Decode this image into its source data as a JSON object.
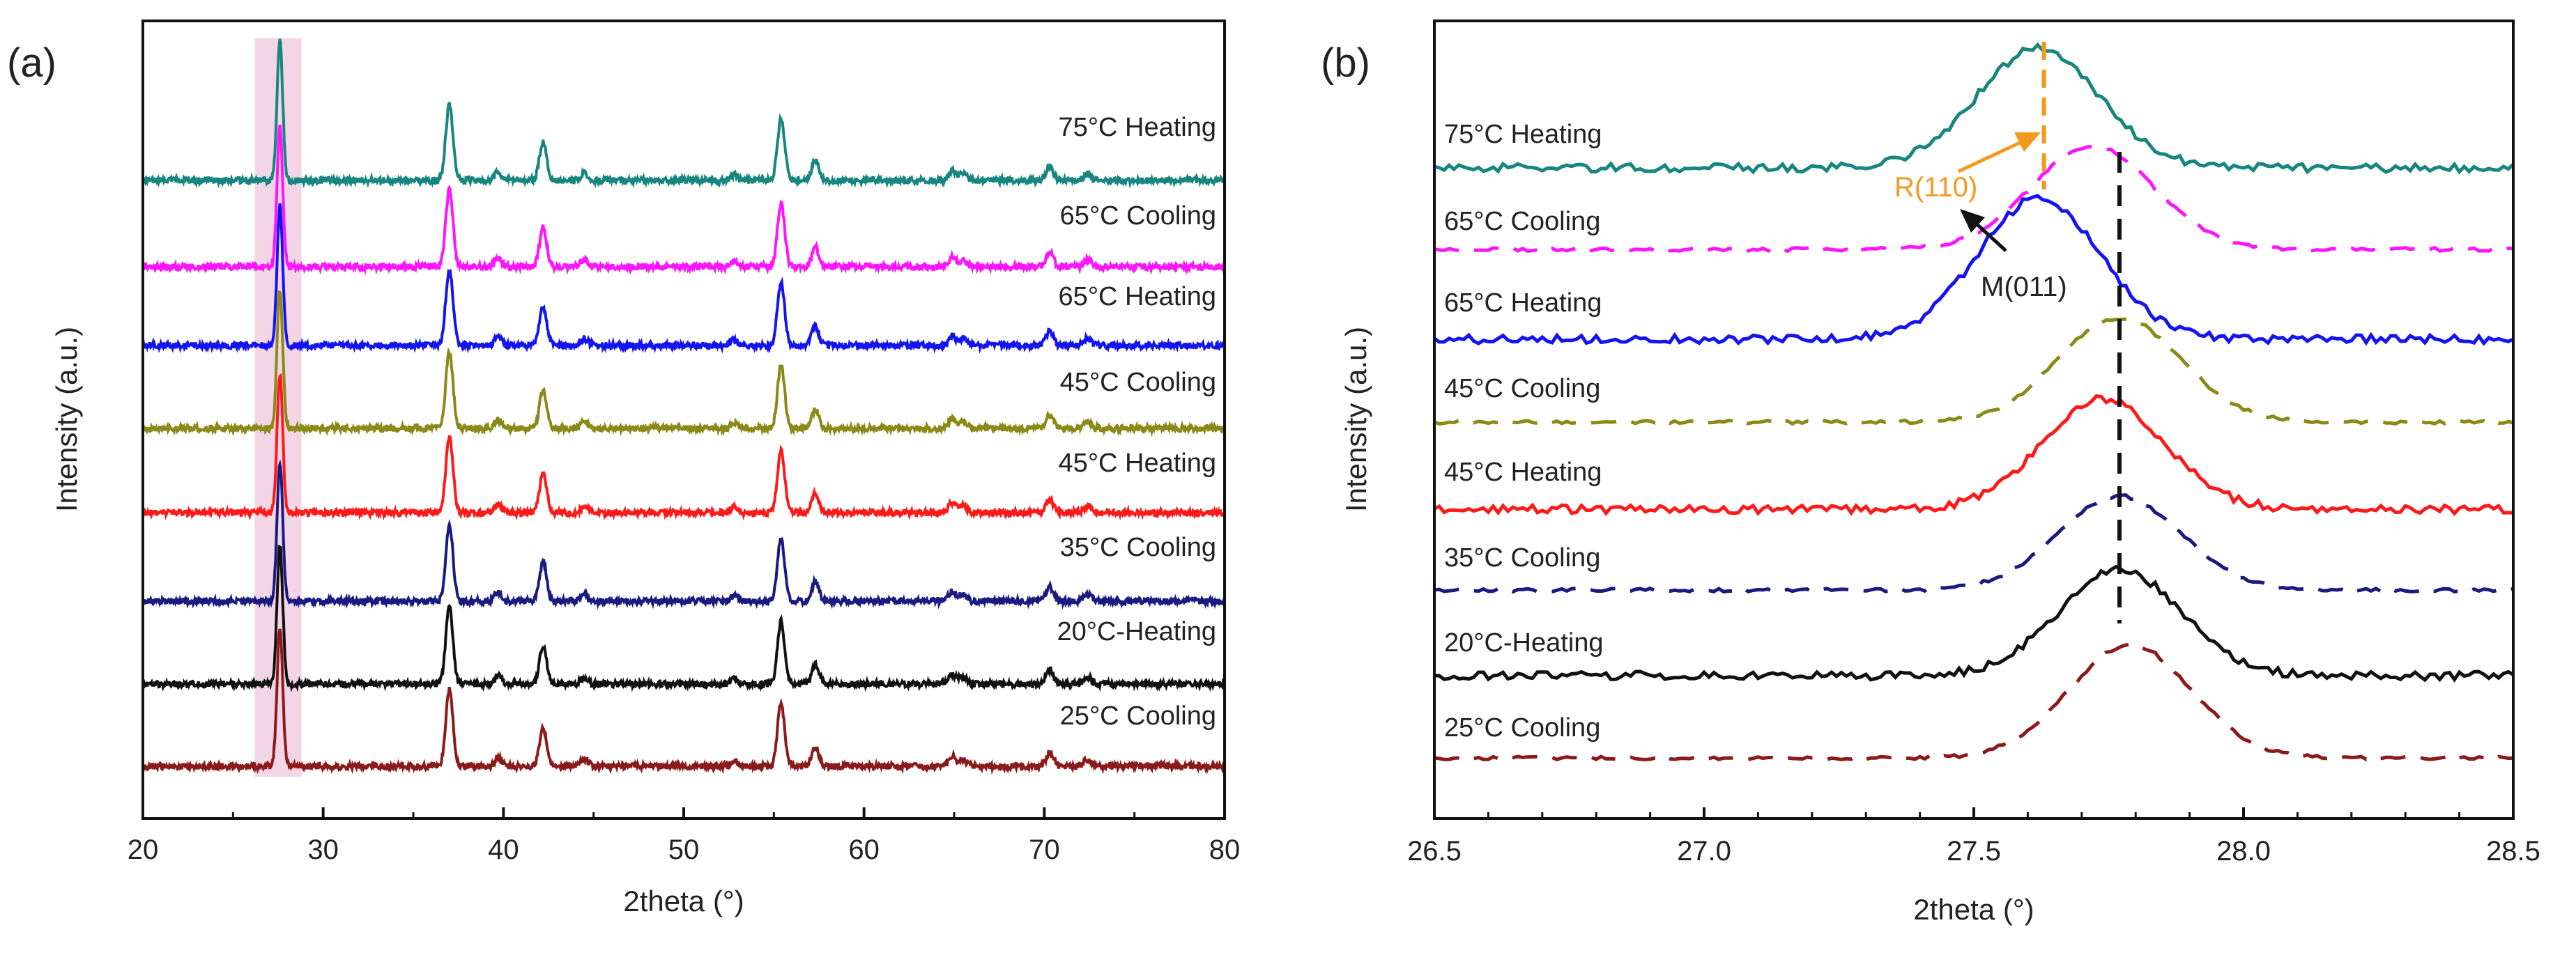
{
  "chart_data": [
    {
      "panel": "(a)",
      "type": "line",
      "xlabel": "2theta (°)",
      "ylabel": "Intensity (a.u.)",
      "xlim": [
        20,
        80
      ],
      "xticks": [
        20,
        30,
        40,
        50,
        60,
        70,
        80
      ],
      "highlight_band": {
        "x_range": [
          26.2,
          28.8
        ],
        "color": "#f3d6e6"
      },
      "peaks": [
        {
          "center": 27.6,
          "height": 1.0
        },
        {
          "center": 37.0,
          "height": 0.55
        },
        {
          "center": 39.7,
          "height": 0.06
        },
        {
          "center": 42.2,
          "height": 0.28
        },
        {
          "center": 44.5,
          "height": 0.05
        },
        {
          "center": 52.8,
          "height": 0.04
        },
        {
          "center": 55.4,
          "height": 0.45
        },
        {
          "center": 57.3,
          "height": 0.14
        },
        {
          "center": 64.9,
          "height": 0.07
        },
        {
          "center": 65.5,
          "height": 0.05
        },
        {
          "center": 70.3,
          "height": 0.1
        },
        {
          "center": 72.4,
          "height": 0.05
        }
      ],
      "series": [
        {
          "name": "75°C Heating",
          "color": "#16867f",
          "style": "solid"
        },
        {
          "name": "65°C Cooling",
          "color": "#ff14ff",
          "style": "solid"
        },
        {
          "name": "65°C Heating",
          "color": "#1414f0",
          "style": "solid"
        },
        {
          "name": "45°C Cooling",
          "color": "#8a8a18",
          "style": "solid"
        },
        {
          "name": "45°C Heating",
          "color": "#ff1a1a",
          "style": "solid"
        },
        {
          "name": "35°C Cooling",
          "color": "#1a1a80",
          "style": "solid"
        },
        {
          "name": "20°C-Heating",
          "color": "#111111",
          "style": "solid"
        },
        {
          "name": "25°C Cooling",
          "color": "#8b1a1a",
          "style": "solid"
        }
      ]
    },
    {
      "panel": "(b)",
      "type": "line",
      "xlabel": "2theta (°)",
      "ylabel": "Intensity (a.u.)",
      "xlim": [
        26.5,
        28.5
      ],
      "xticks": [
        26.5,
        27.0,
        27.5,
        28.0,
        28.5
      ],
      "xtick_labels": [
        "26.5",
        "27.0",
        "27.5",
        "28.0",
        "28.5"
      ],
      "series": [
        {
          "name": "75°C Heating",
          "color": "#16867f",
          "style": "solid",
          "peak_center": 27.62
        },
        {
          "name": "65°C Cooling",
          "color": "#ff14ff",
          "style": "dashed",
          "peak_center": 27.72
        },
        {
          "name": "65°C Heating",
          "color": "#1414f0",
          "style": "solid",
          "peak_center": 27.62
        },
        {
          "name": "45°C Cooling",
          "color": "#8a8a18",
          "style": "dashed",
          "peak_center": 27.77
        },
        {
          "name": "45°C Heating",
          "color": "#ff1a1a",
          "style": "solid",
          "peak_center": 27.74
        },
        {
          "name": "35°C Cooling",
          "color": "#1a1a80",
          "style": "dashed",
          "peak_center": 27.77
        },
        {
          "name": "20°C-Heating",
          "color": "#111111",
          "style": "solid",
          "peak_center": 27.77
        },
        {
          "name": "25°C Cooling",
          "color": "#8b1a1a",
          "style": "dashed",
          "peak_center": 27.79
        }
      ],
      "annotations": [
        {
          "text": "R(110)",
          "x": 27.63,
          "color": "#f39a1e"
        },
        {
          "text": "M(011)",
          "x": 27.77,
          "color": "#111111"
        }
      ]
    }
  ]
}
